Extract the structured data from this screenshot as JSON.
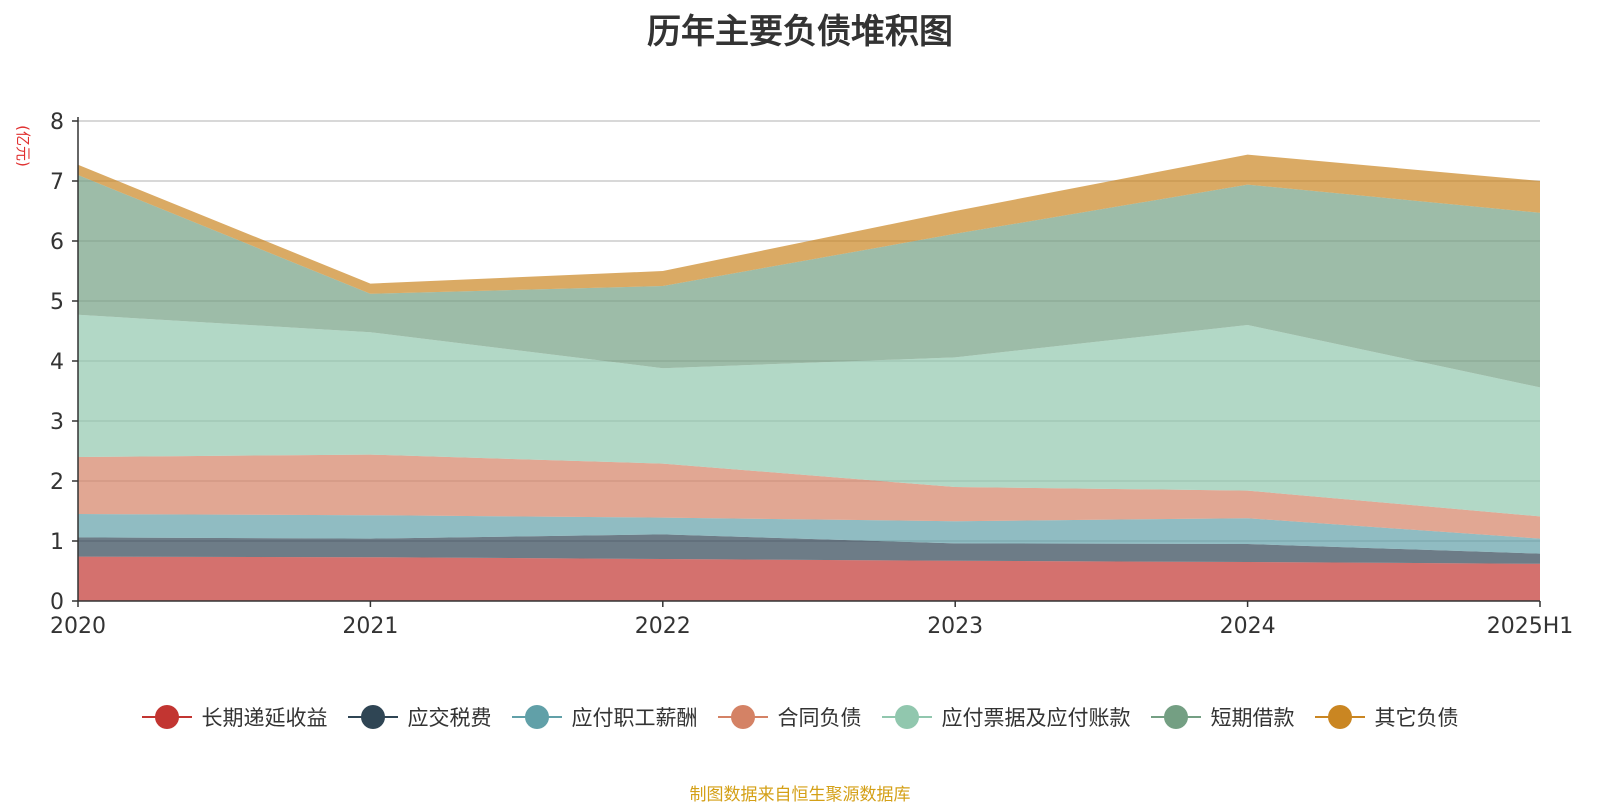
{
  "chart_data": {
    "type": "area",
    "stacked": true,
    "title": "历年主要负债堆积图",
    "ylabel": "(亿元)",
    "xlabel": "",
    "categories": [
      "2020",
      "2021",
      "2022",
      "2023",
      "2024",
      "2025H1"
    ],
    "ylim": [
      0,
      8
    ],
    "yticks": [
      "0",
      "1",
      "2",
      "3",
      "4",
      "5",
      "6",
      "7",
      "8"
    ],
    "grid": true,
    "legend_position": "bottom",
    "series": [
      {
        "name": "长期递延收益",
        "color": "#c23531",
        "values": [
          0.74,
          0.73,
          0.7,
          0.67,
          0.65,
          0.62
        ]
      },
      {
        "name": "应交税费",
        "color": "#2f4554",
        "values": [
          0.32,
          0.31,
          0.41,
          0.29,
          0.3,
          0.17
        ]
      },
      {
        "name": "应付职工薪酬",
        "color": "#61a0a8",
        "values": [
          0.39,
          0.39,
          0.28,
          0.37,
          0.43,
          0.25
        ]
      },
      {
        "name": "合同负债",
        "color": "#d48265",
        "values": [
          0.95,
          1.01,
          0.9,
          0.57,
          0.46,
          0.37
        ]
      },
      {
        "name": "应付票据及应付账款",
        "color": "#91c7ae",
        "values": [
          2.37,
          2.04,
          1.59,
          2.16,
          2.76,
          2.15
        ]
      },
      {
        "name": "短期借款",
        "color": "#749f83",
        "values": [
          2.33,
          0.64,
          1.37,
          2.06,
          2.34,
          2.91
        ]
      },
      {
        "name": "其它负债",
        "color": "#ca8622",
        "values": [
          0.17,
          0.17,
          0.25,
          0.38,
          0.5,
          0.53
        ]
      }
    ]
  },
  "footer": {
    "source": "制图数据来自恒生聚源数据库"
  }
}
